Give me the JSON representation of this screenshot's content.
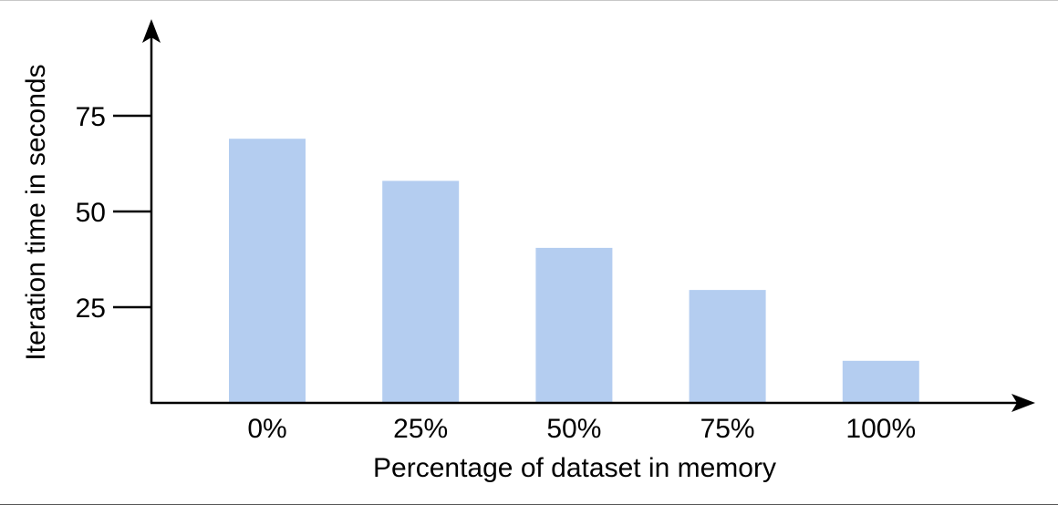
{
  "chart_data": {
    "type": "bar",
    "title": "",
    "xlabel": "Percentage of dataset in memory",
    "ylabel": "Iteration time in seconds",
    "categories": [
      "0%",
      "25%",
      "50%",
      "75%",
      "100%"
    ],
    "values": [
      69,
      58,
      40.5,
      29.5,
      11
    ],
    "ylim": [
      0,
      100
    ],
    "yticks": [
      25,
      50,
      75
    ],
    "ytick_labels": [
      "25",
      "50",
      "75"
    ],
    "bar_color": "#b4cdf0",
    "axis_color": "#000000",
    "grid": false,
    "legend": "none"
  }
}
